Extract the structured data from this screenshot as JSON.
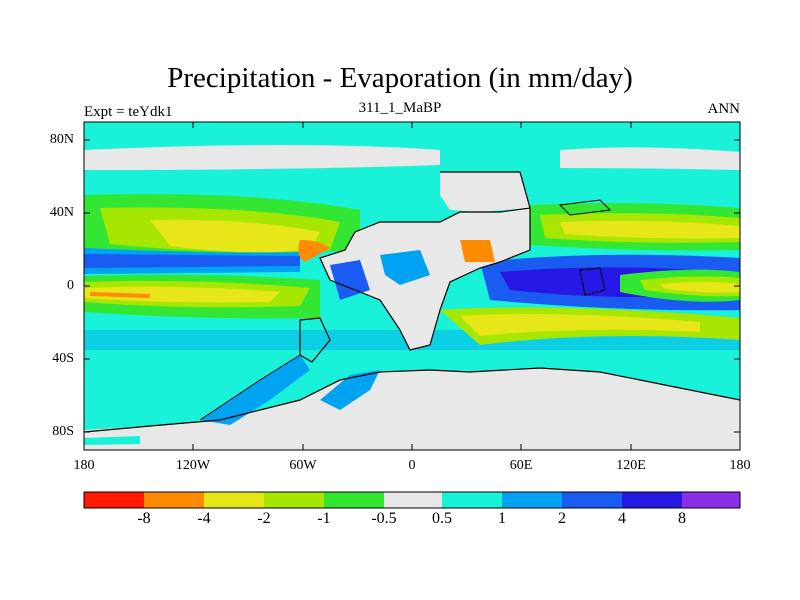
{
  "title": "Precipitation - Evaporation (in mm/day)",
  "left_label": "Expt = teYdk1",
  "center_label": "311_1_MaBP",
  "right_label": "ANN",
  "y_ticks": [
    "80N",
    "40N",
    "0",
    "40S",
    "80S"
  ],
  "x_ticks": [
    "180",
    "120W",
    "60W",
    "0",
    "60E",
    "120E",
    "180"
  ],
  "colorbar": {
    "colors": [
      "#ff1a00",
      "#ff8c00",
      "#e6e619",
      "#a6e600",
      "#33e633",
      "#e8e8e8",
      "#19f2d9",
      "#00a3f2",
      "#1a5cf2",
      "#2619e6",
      "#8c2ee6"
    ],
    "labels": [
      "-8",
      "-4",
      "-2",
      "-1",
      "-0.5",
      "0.5",
      "1",
      "2",
      "4",
      "8"
    ]
  }
}
